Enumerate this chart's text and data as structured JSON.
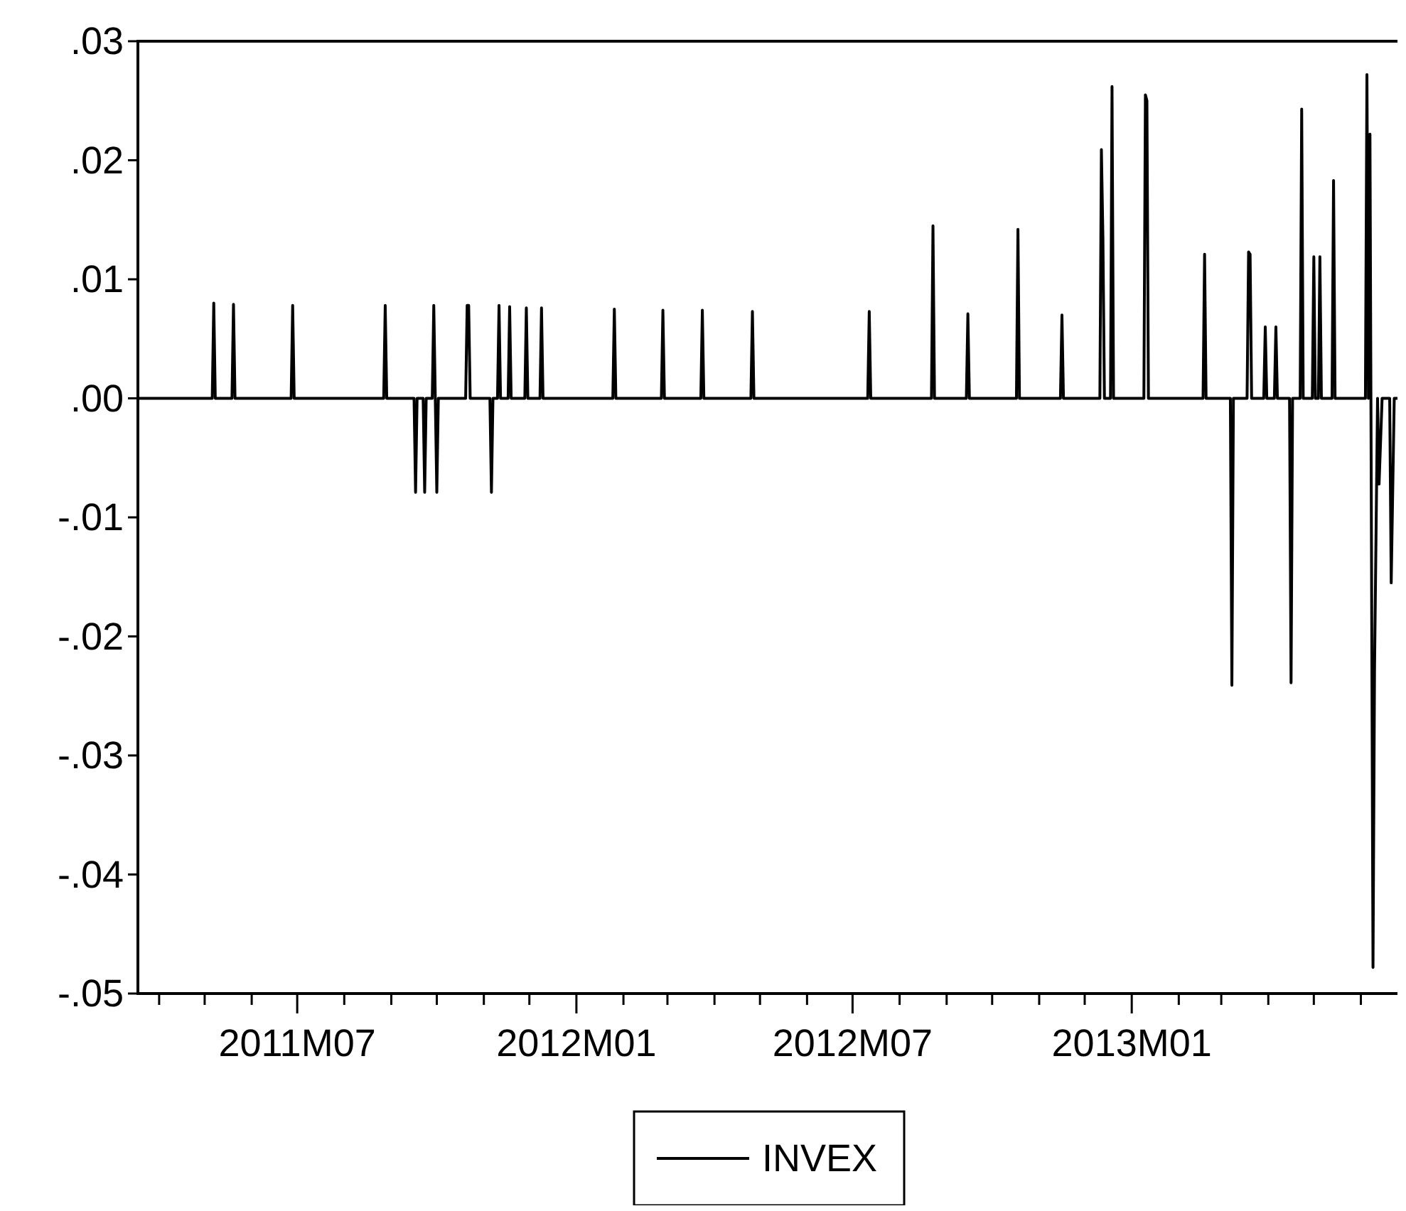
{
  "chart_data": {
    "type": "line",
    "x": [
      "2011-03-18",
      "2011-05-06",
      "2011-05-07",
      "2011-05-08",
      "2011-05-19",
      "2011-05-20",
      "2011-05-21",
      "2011-06-27",
      "2011-06-28",
      "2011-06-29",
      "2011-08-27",
      "2011-08-28",
      "2011-08-29",
      "2011-09-16",
      "2011-09-17",
      "2011-09-18",
      "2011-09-22",
      "2011-09-23",
      "2011-09-24",
      "2011-09-28",
      "2011-09-29",
      "2011-09-30",
      "2011-10-01",
      "2011-10-02",
      "2011-10-20",
      "2011-10-21",
      "2011-10-22",
      "2011-10-23",
      "2011-11-05",
      "2011-11-06",
      "2011-11-07",
      "2011-11-10",
      "2011-11-11",
      "2011-11-12",
      "2011-11-17",
      "2011-11-18",
      "2011-11-19",
      "2011-11-28",
      "2011-11-29",
      "2011-11-30",
      "2011-12-08",
      "2011-12-09",
      "2011-12-10",
      "2012-01-25",
      "2012-01-26",
      "2012-01-27",
      "2012-02-26",
      "2012-02-27",
      "2012-02-28",
      "2012-03-23",
      "2012-03-24",
      "2012-03-25",
      "2012-04-25",
      "2012-04-26",
      "2012-04-27",
      "2012-07-11",
      "2012-07-12",
      "2012-07-13",
      "2012-08-22",
      "2012-08-23",
      "2012-08-24",
      "2012-09-14",
      "2012-09-15",
      "2012-09-16",
      "2012-10-17",
      "2012-10-18",
      "2012-10-19",
      "2012-11-15",
      "2012-11-16",
      "2012-11-17",
      "2012-12-11",
      "2012-12-12",
      "2012-12-13",
      "2012-12-14",
      "2012-12-18",
      "2012-12-19",
      "2012-12-20",
      "2013-01-09",
      "2013-01-10",
      "2013-01-11",
      "2013-01-12",
      "2013-02-17",
      "2013-02-18",
      "2013-02-19",
      "2013-03-07",
      "2013-03-08",
      "2013-03-09",
      "2013-03-18",
      "2013-03-19",
      "2013-03-20",
      "2013-03-21",
      "2013-03-29",
      "2013-03-30",
      "2013-03-31",
      "2013-04-05",
      "2013-04-06",
      "2013-04-07",
      "2013-04-15",
      "2013-04-16",
      "2013-04-17",
      "2013-04-22",
      "2013-04-23",
      "2013-04-24",
      "2013-04-30",
      "2013-05-01",
      "2013-05-02",
      "2013-05-04",
      "2013-05-05",
      "2013-05-06",
      "2013-05-13",
      "2013-05-14",
      "2013-05-15",
      "2013-06-04",
      "2013-06-05",
      "2013-06-06",
      "2013-06-07",
      "2013-06-09",
      "2013-06-10",
      "2013-06-12",
      "2013-06-13",
      "2013-06-15",
      "2013-06-20",
      "2013-06-21",
      "2013-06-23",
      "2013-06-26"
    ],
    "series": [
      {
        "name": "INVEX",
        "color": "#000000",
        "values": [
          0,
          0,
          0.008,
          0,
          0,
          0.0079,
          0,
          0,
          0.0078,
          0,
          0,
          0.0078,
          0,
          0,
          -0.0079,
          0,
          0,
          -0.0079,
          0,
          0,
          0.0078,
          0,
          -0.0079,
          0,
          0,
          0.0078,
          0.0078,
          0,
          0,
          -0.0079,
          0,
          0,
          0.0078,
          0,
          0,
          0.0077,
          0,
          0,
          0.0076,
          0,
          0,
          0.0076,
          0,
          0,
          0.0075,
          0,
          0,
          0.0074,
          0,
          0,
          0.0074,
          0,
          0,
          0.0073,
          0,
          0,
          0.0073,
          0,
          0,
          0.0145,
          0,
          0,
          0.0071,
          0,
          0,
          0.0142,
          0,
          0,
          0.007,
          0,
          0,
          0.0209,
          0.0135,
          0,
          0,
          0.0262,
          0,
          0,
          0.0255,
          0.025,
          0,
          0,
          0.0121,
          0,
          0,
          -0.0241,
          0,
          0,
          0.0123,
          0.0121,
          0,
          0,
          0.006,
          0,
          0,
          0.006,
          0,
          0,
          -0.0239,
          0,
          0,
          0.0243,
          0,
          0,
          0.0119,
          0,
          0,
          0.0119,
          0,
          0,
          0.0183,
          0,
          0,
          0.0272,
          0,
          0.0222,
          -0.0478,
          -0.0229,
          0,
          -0.0072,
          0,
          0,
          -0.0155,
          0,
          0
        ]
      }
    ],
    "xlim": [
      "2011-03-18",
      "2013-06-27"
    ],
    "xticks": [
      {
        "value": "2011-04",
        "label": null
      },
      {
        "value": "2011-05",
        "label": null
      },
      {
        "value": "2011-06",
        "label": null
      },
      {
        "value": "2011-07",
        "label": "2011M07"
      },
      {
        "value": "2011-08",
        "label": null
      },
      {
        "value": "2011-09",
        "label": null
      },
      {
        "value": "2011-10",
        "label": null
      },
      {
        "value": "2011-11",
        "label": null
      },
      {
        "value": "2011-12",
        "label": null
      },
      {
        "value": "2012-01",
        "label": "2012M01"
      },
      {
        "value": "2012-02",
        "label": null
      },
      {
        "value": "2012-03",
        "label": null
      },
      {
        "value": "2012-04",
        "label": null
      },
      {
        "value": "2012-05",
        "label": null
      },
      {
        "value": "2012-06",
        "label": null
      },
      {
        "value": "2012-07",
        "label": "2012M07"
      },
      {
        "value": "2012-08",
        "label": null
      },
      {
        "value": "2012-09",
        "label": null
      },
      {
        "value": "2012-10",
        "label": null
      },
      {
        "value": "2012-11",
        "label": null
      },
      {
        "value": "2012-12",
        "label": null
      },
      {
        "value": "2013-01",
        "label": "2013M01"
      },
      {
        "value": "2013-02",
        "label": null
      },
      {
        "value": "2013-03",
        "label": null
      },
      {
        "value": "2013-04",
        "label": null
      },
      {
        "value": "2013-05",
        "label": null
      },
      {
        "value": "2013-06",
        "label": null
      }
    ],
    "ylim": [
      -0.05,
      0.03
    ],
    "yticks": [
      {
        "value": -0.05,
        "label": "-.05"
      },
      {
        "value": -0.04,
        "label": "-.04"
      },
      {
        "value": -0.03,
        "label": "-.03"
      },
      {
        "value": -0.02,
        "label": "-.02"
      },
      {
        "value": -0.01,
        "label": "-.01"
      },
      {
        "value": 0,
        "label": ".00"
      },
      {
        "value": 0.01,
        "label": ".01"
      },
      {
        "value": 0.02,
        "label": ".02"
      },
      {
        "value": 0.03,
        "label": ".03"
      }
    ],
    "grid": false,
    "legend": "bottom",
    "marker": "none",
    "line_style": "solid"
  }
}
